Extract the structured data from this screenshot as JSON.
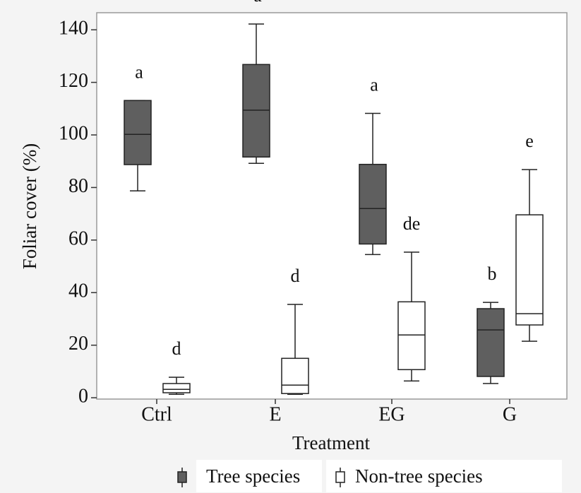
{
  "chart_data": {
    "type": "box",
    "x_label": "Treatment",
    "y_label": "Foliar cover (%)",
    "categories": [
      "Ctrl",
      "E",
      "EG",
      "G"
    ],
    "ylim": [
      -0.5,
      146.5
    ],
    "yticks": [
      0,
      20,
      40,
      60,
      80,
      100,
      120,
      140
    ],
    "series": [
      {
        "name": "Tree species",
        "color": "#5f5f5f",
        "boxes": [
          {
            "min": 78.7,
            "q1": 88.7,
            "median": 100.2,
            "q3": 113.1,
            "max": 113.1
          },
          {
            "min": 89.2,
            "q1": 91.6,
            "median": 109.4,
            "q3": 126.8,
            "max": 142.2
          },
          {
            "min": 54.5,
            "q1": 58.5,
            "median": 72,
            "q3": 88.8,
            "max": 108.2
          },
          {
            "min": 5.4,
            "q1": 8.1,
            "median": 25.8,
            "q3": 33.9,
            "max": 36.3
          }
        ],
        "annotations": [
          "a",
          "a",
          "a",
          "b"
        ]
      },
      {
        "name": "Non-tree species",
        "color": "#ffffff",
        "boxes": [
          {
            "min": 1.3,
            "q1": 1.9,
            "median": 3.2,
            "q3": 5.4,
            "max": 7.8
          },
          {
            "min": 1.3,
            "q1": 1.6,
            "median": 4.8,
            "q3": 15.0,
            "max": 35.5
          },
          {
            "min": 6.4,
            "q1": 10.7,
            "median": 23.9,
            "q3": 36.5,
            "max": 55.4
          },
          {
            "min": 21.5,
            "q1": 27.7,
            "median": 32,
            "q3": 69.6,
            "max": 86.8
          }
        ],
        "annotations": [
          "d",
          "d",
          "de",
          "e"
        ]
      }
    ]
  }
}
